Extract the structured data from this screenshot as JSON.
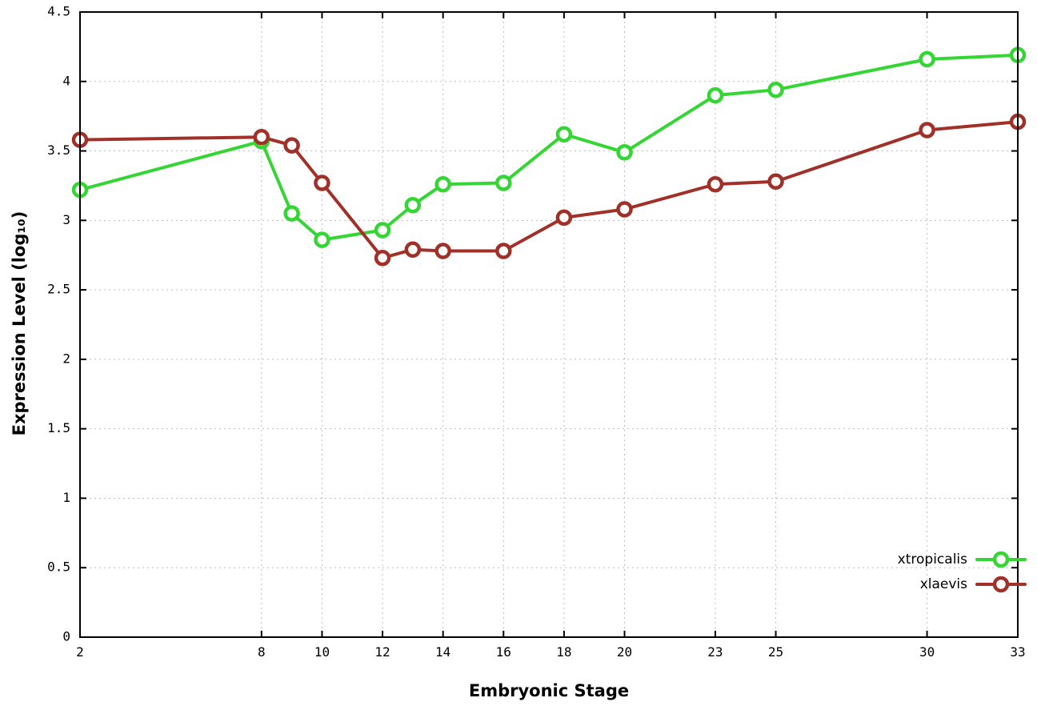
{
  "page": {
    "background": "#ffffff"
  },
  "chart_data": {
    "type": "line",
    "title": "",
    "xlabel": "Embryonic Stage",
    "ylabel": "Expression Level (log₁₀)",
    "xlim": [
      2,
      33
    ],
    "ylim": [
      0,
      4.5
    ],
    "x_ticks": [
      2,
      8,
      10,
      12,
      14,
      16,
      18,
      20,
      23,
      25,
      30,
      33
    ],
    "x_tick_labels": [
      "2",
      "8",
      "10",
      "12",
      "14",
      "16",
      "18",
      "20",
      "23",
      "25",
      "30",
      "33"
    ],
    "y_ticks": [
      0,
      0.5,
      1,
      1.5,
      2,
      2.5,
      3,
      3.5,
      4,
      4.5
    ],
    "y_tick_labels": [
      "0",
      "0.5",
      "1",
      "1.5",
      "2",
      "2.5",
      "3",
      "3.5",
      "4",
      "4.5"
    ],
    "grid": true,
    "legend_position": "bottom-right",
    "marker": "open-circle",
    "axis_color": "#000000",
    "grid_color": "#bfbfbf",
    "x": [
      2,
      8,
      9,
      10,
      12,
      13,
      14,
      16,
      18,
      20,
      23,
      25,
      30,
      33
    ],
    "series": [
      {
        "name": "xtropicalis",
        "color": "#33d633",
        "values": [
          3.22,
          3.57,
          3.05,
          2.86,
          2.93,
          3.11,
          3.26,
          3.27,
          3.62,
          3.49,
          3.9,
          3.94,
          4.16,
          4.19
        ]
      },
      {
        "name": "xlaevis",
        "color": "#a03028",
        "values": [
          3.58,
          3.6,
          3.54,
          3.27,
          2.73,
          2.79,
          2.78,
          2.78,
          3.02,
          3.08,
          3.26,
          3.28,
          3.65,
          3.71
        ]
      }
    ]
  }
}
